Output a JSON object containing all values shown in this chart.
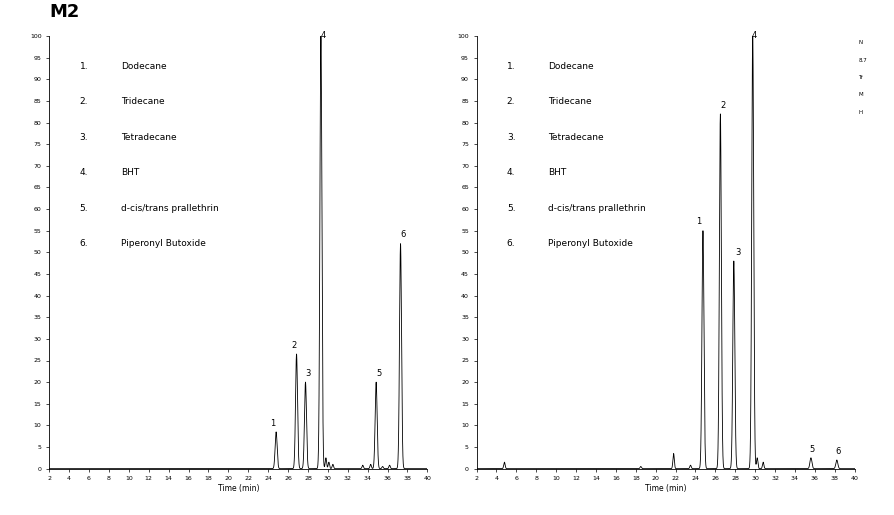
{
  "title_left": "M2",
  "legend_items": [
    [
      "1.",
      "Dodecane"
    ],
    [
      "2.",
      "Tridecane"
    ],
    [
      "3.",
      "Tetradecane"
    ],
    [
      "4.",
      "BHT"
    ],
    [
      "5.",
      "d-cis/trans prallethrin"
    ],
    [
      "6.",
      "Piperonyl Butoxide"
    ]
  ],
  "xlabel": "Time (min)",
  "xrange": [
    2,
    40
  ],
  "xticks": [
    2,
    4,
    6,
    8,
    10,
    12,
    14,
    16,
    18,
    20,
    22,
    24,
    26,
    28,
    30,
    32,
    34,
    36,
    38,
    40
  ],
  "yrange": [
    0,
    100
  ],
  "yticks": [
    0,
    5,
    10,
    15,
    20,
    25,
    30,
    35,
    40,
    45,
    50,
    55,
    60,
    65,
    70,
    75,
    80,
    85,
    90,
    95,
    100
  ],
  "panel_left": {
    "peaks": [
      {
        "time": 24.8,
        "height": 8.5,
        "label": "1",
        "lox": -0.3,
        "loy": 1.0
      },
      {
        "time": 26.85,
        "height": 26.5,
        "label": "2",
        "lox": -0.3,
        "loy": 1.0
      },
      {
        "time": 27.75,
        "height": 20.0,
        "label": "3",
        "lox": 0.3,
        "loy": 1.0
      },
      {
        "time": 29.3,
        "height": 100.0,
        "label": "4",
        "lox": 0.2,
        "loy": 0.5
      },
      {
        "time": 34.85,
        "height": 20.0,
        "label": "5",
        "lox": 0.3,
        "loy": 1.0
      },
      {
        "time": 37.3,
        "height": 52.0,
        "label": "6",
        "lox": 0.3,
        "loy": 1.0
      }
    ],
    "minor_peaks": [
      {
        "time": 29.8,
        "height": 2.5
      },
      {
        "time": 30.1,
        "height": 1.5
      },
      {
        "time": 30.5,
        "height": 1.0
      },
      {
        "time": 33.5,
        "height": 0.8
      },
      {
        "time": 34.3,
        "height": 1.0
      },
      {
        "time": 35.5,
        "height": 0.5
      },
      {
        "time": 36.2,
        "height": 0.8
      }
    ]
  },
  "panel_right": {
    "peaks": [
      {
        "time": 24.75,
        "height": 55.0,
        "label": "1",
        "lox": -0.4,
        "loy": 1.0
      },
      {
        "time": 26.5,
        "height": 82.0,
        "label": "2",
        "lox": 0.3,
        "loy": 1.0
      },
      {
        "time": 27.85,
        "height": 48.0,
        "label": "3",
        "lox": 0.4,
        "loy": 1.0
      },
      {
        "time": 29.75,
        "height": 100.0,
        "label": "4",
        "lox": 0.2,
        "loy": 0.5
      },
      {
        "time": 35.6,
        "height": 2.5,
        "label": "5",
        "lox": 0.1,
        "loy": 1.0
      },
      {
        "time": 38.2,
        "height": 2.0,
        "label": "6",
        "lox": 0.1,
        "loy": 1.0
      }
    ],
    "minor_peaks": [
      {
        "time": 4.8,
        "height": 1.5
      },
      {
        "time": 18.5,
        "height": 0.5
      },
      {
        "time": 21.8,
        "height": 3.5
      },
      {
        "time": 23.5,
        "height": 0.8
      },
      {
        "time": 30.2,
        "height": 2.5
      },
      {
        "time": 30.8,
        "height": 1.5
      }
    ]
  },
  "right_note": [
    "N",
    "8.7",
    "Tr",
    "M",
    "H"
  ],
  "line_color": "#000000",
  "bg_color": "#ffffff",
  "peak_sigma": 0.1,
  "font_color": "#000000"
}
